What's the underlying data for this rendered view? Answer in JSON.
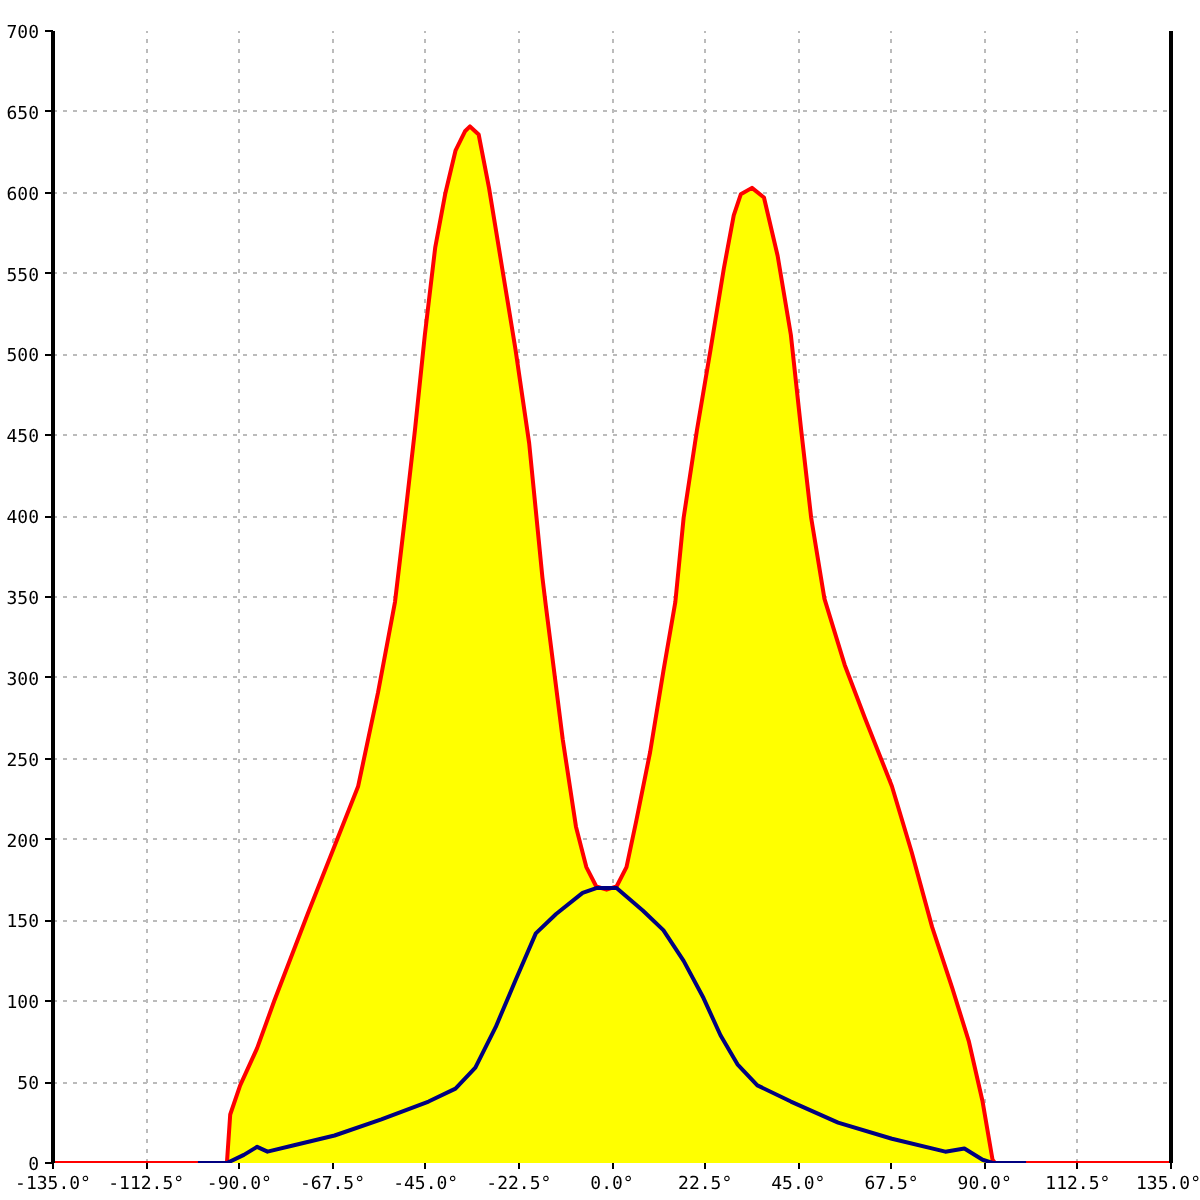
{
  "chart_data": {
    "type": "area",
    "xlim": [
      -135,
      135
    ],
    "ylim": [
      0,
      700
    ],
    "xticks": [
      {
        "value": -135,
        "label": "-135.0°"
      },
      {
        "value": -112.5,
        "label": "-112.5°"
      },
      {
        "value": -90,
        "label": "-90.0°"
      },
      {
        "value": -67.5,
        "label": "-67.5°"
      },
      {
        "value": -45,
        "label": "-45.0°"
      },
      {
        "value": -22.5,
        "label": "-22.5°"
      },
      {
        "value": 0,
        "label": "0.0°"
      },
      {
        "value": 22.5,
        "label": "22.5°"
      },
      {
        "value": 45,
        "label": "45.0°"
      },
      {
        "value": 67.5,
        "label": "67.5°"
      },
      {
        "value": 90,
        "label": "90.0°"
      },
      {
        "value": 112.5,
        "label": "112.5°"
      },
      {
        "value": 135,
        "label": "135.0°"
      }
    ],
    "yticks": [
      0,
      50,
      100,
      150,
      200,
      250,
      300,
      350,
      400,
      450,
      500,
      550,
      600,
      650,
      700
    ],
    "grid": true,
    "series": [
      {
        "color": "#ffff00",
        "x": [
          -93.0,
          -92.2,
          -89.8,
          -85.7,
          -81.6,
          -73.5,
          -67.0,
          -61.3,
          -56.5,
          -52.4,
          -50.0,
          -47.6,
          -45.2,
          -42.7,
          -40.3,
          -37.8,
          -35.5,
          -34.3,
          -32.2,
          -29.7,
          -26.5,
          -23.3,
          -20.0,
          -16.8,
          -16.0,
          -11.9,
          -8.7,
          -6.2,
          -3.8,
          -1.3,
          1.1,
          3.5,
          5.9,
          9.2,
          12.4,
          15.3,
          17.3,
          20.5,
          23.8,
          27.0,
          29.4,
          31.1,
          33.8,
          36.7,
          40.0,
          43.2,
          45.7,
          48.1,
          51.3,
          56.2,
          61.1,
          67.6,
          72.4,
          77.3,
          82.2,
          86.2,
          89.5,
          91.9,
          92.5
        ],
        "values": [
          0,
          30,
          48,
          71,
          100,
          154,
          196,
          233,
          291,
          347,
          399,
          453,
          512,
          566,
          599,
          626,
          638,
          641,
          636,
          603,
          553,
          503,
          445,
          362,
          345,
          262,
          208,
          183,
          171,
          169,
          171,
          183,
          212,
          254,
          304,
          347,
          399,
          453,
          503,
          553,
          586,
          599,
          603,
          597,
          561,
          512,
          453,
          399,
          349,
          308,
          275,
          233,
          192,
          146,
          108,
          75,
          38,
          2,
          0
        ]
      },
      {
        "type": "line",
        "color": "#ff0000",
        "x": [
          -135,
          -93.0,
          -92.2,
          -89.8,
          -85.7,
          -81.6,
          -73.5,
          -67.0,
          -61.3,
          -56.5,
          -52.4,
          -50.0,
          -47.6,
          -45.2,
          -42.7,
          -40.3,
          -37.8,
          -35.5,
          -34.3,
          -32.2,
          -29.7,
          -26.5,
          -23.3,
          -20.0,
          -16.8,
          -16.0,
          -11.9,
          -8.7,
          -6.2,
          -3.8,
          -1.3,
          1.1,
          3.5,
          5.9,
          9.2,
          12.4,
          15.3,
          17.3,
          20.5,
          23.8,
          27.0,
          29.4,
          31.1,
          33.8,
          36.7,
          40.0,
          43.2,
          45.7,
          48.1,
          51.3,
          56.2,
          61.1,
          67.6,
          72.4,
          77.3,
          82.2,
          86.2,
          89.5,
          91.9,
          92.5,
          135
        ],
        "values": [
          0,
          0,
          30,
          48,
          71,
          100,
          154,
          196,
          233,
          291,
          347,
          399,
          453,
          512,
          566,
          599,
          626,
          638,
          641,
          636,
          603,
          553,
          503,
          445,
          362,
          345,
          262,
          208,
          183,
          171,
          169,
          171,
          183,
          212,
          254,
          304,
          347,
          399,
          453,
          503,
          553,
          586,
          599,
          603,
          597,
          561,
          512,
          453,
          399,
          349,
          308,
          275,
          233,
          192,
          146,
          108,
          75,
          38,
          2,
          0,
          0
        ]
      },
      {
        "type": "line",
        "color": "#000080",
        "x": [
          -100,
          -93.0,
          -88.9,
          -85.7,
          -83.2,
          -76.8,
          -67.0,
          -55.7,
          -44.3,
          -37.8,
          -33.0,
          -28.1,
          -23.3,
          -18.4,
          -13.5,
          -7.1,
          -3.8,
          1.1,
          7.5,
          12.4,
          17.3,
          22.1,
          26.2,
          30.3,
          35.1,
          43.2,
          54.6,
          67.6,
          80.5,
          85.1,
          89.5,
          91.9,
          100
        ],
        "values": [
          0,
          0,
          5,
          10,
          7,
          11,
          17,
          27,
          38,
          46,
          59,
          84,
          113,
          142,
          154,
          167,
          170,
          170,
          156,
          144,
          125,
          102,
          79,
          61,
          48,
          38,
          25,
          15,
          7,
          9,
          2,
          0,
          0
        ]
      }
    ]
  }
}
